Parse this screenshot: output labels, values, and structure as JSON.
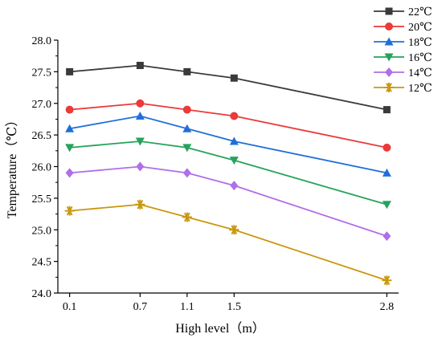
{
  "chart_data": {
    "type": "line",
    "xlabel": "High level（m）",
    "ylabel": "Temperature（℃）",
    "x": [
      0.1,
      0.7,
      1.1,
      1.5,
      2.8
    ],
    "x_tick_labels": [
      "0.1",
      "0.7",
      "1.1",
      "1.5",
      "2.8"
    ],
    "xlim": [
      0.0,
      2.9
    ],
    "ylim": [
      24.0,
      28.0
    ],
    "y_ticks": [
      24.0,
      24.5,
      25.0,
      25.5,
      26.0,
      26.5,
      27.0,
      27.5,
      28.0
    ],
    "y_tick_labels": [
      "24.0",
      "24.5",
      "25.0",
      "25.5",
      "26.0",
      "26.5",
      "27.0",
      "27.5",
      "28.0"
    ],
    "grid": false,
    "legend_position": "top-right",
    "series": [
      {
        "name": "22℃",
        "marker": "square",
        "color": "#3a3a3a",
        "values": [
          27.5,
          27.6,
          27.5,
          27.4,
          26.9
        ]
      },
      {
        "name": "20℃",
        "marker": "circle",
        "color": "#ea3a3a",
        "values": [
          26.9,
          27.0,
          26.9,
          26.8,
          26.3
        ]
      },
      {
        "name": "18℃",
        "marker": "triangle-up",
        "color": "#1f6fd9",
        "values": [
          26.6,
          26.8,
          26.6,
          26.4,
          25.9
        ]
      },
      {
        "name": "16℃",
        "marker": "triangle-down",
        "color": "#25a35a",
        "values": [
          26.3,
          26.4,
          26.3,
          26.1,
          25.4
        ]
      },
      {
        "name": "14℃",
        "marker": "diamond",
        "color": "#b06ee8",
        "values": [
          25.9,
          26.0,
          25.9,
          25.7,
          24.9
        ]
      },
      {
        "name": "12℃",
        "marker": "star",
        "color": "#c9980f",
        "values": [
          25.3,
          25.4,
          25.2,
          25.0,
          24.2
        ]
      }
    ]
  }
}
